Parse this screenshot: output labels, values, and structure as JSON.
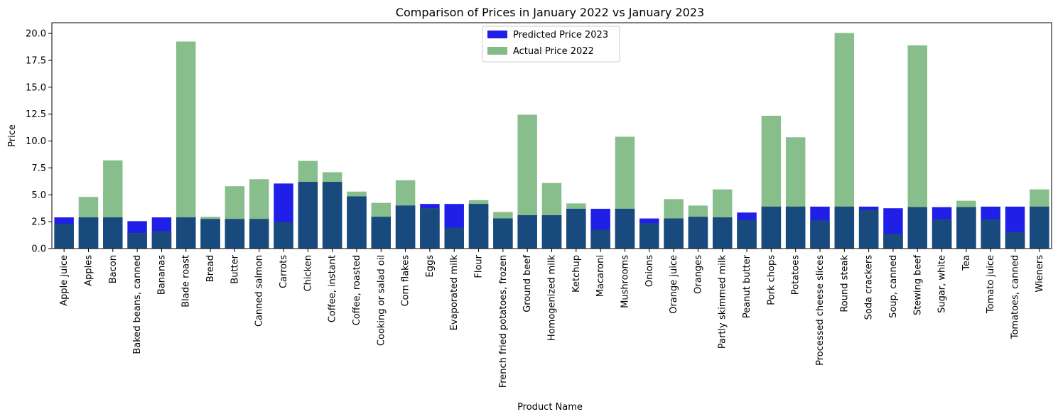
{
  "chart_data": {
    "type": "bar",
    "title": "Comparison of Prices in January 2022 vs January 2023",
    "xlabel": "Product Name",
    "ylabel": "Price",
    "ylim": [
      0,
      21.0
    ],
    "yticks": [
      "0.0",
      "2.5",
      "5.0",
      "7.5",
      "10.0",
      "12.5",
      "15.0",
      "17.5",
      "20.0"
    ],
    "ytick_values": [
      0,
      2.5,
      5,
      7.5,
      10,
      12.5,
      15,
      17.5,
      20
    ],
    "legend_position": "top-center",
    "grid": false,
    "categories": [
      "Apple juice",
      "Apples",
      "Bacon",
      "Baked beans, canned",
      "Bananas",
      "Blade roast",
      "Bread",
      "Butter",
      "Canned salmon",
      "Carrots",
      "Chicken",
      "Coffee, instant",
      "Coffee, roasted",
      "Cooking or salad oil",
      "Corn flakes",
      "Eggs",
      "Evaporated milk",
      "Flour",
      "French fried potatoes, frozen",
      "Ground beef",
      "Homogenized milk",
      "Ketchup",
      "Macaroni",
      "Mushrooms",
      "Onions",
      "Orange juice",
      "Oranges",
      "Partly skimmed milk",
      "Peanut butter",
      "Pork chops",
      "Potatoes",
      "Processed cheese slices",
      "Round steak",
      "Soda crackers",
      "Soup, canned",
      "Stewing beef",
      "Sugar, white",
      "Tea",
      "Tomato juice",
      "Tomatoes, canned",
      "Wieners"
    ],
    "series": [
      {
        "name": "Predicted Price 2023",
        "color": "#1f1fe8",
        "values": [
          2.9,
          2.9,
          2.9,
          2.55,
          2.9,
          2.9,
          2.75,
          2.75,
          2.75,
          6.05,
          6.2,
          6.2,
          4.85,
          2.95,
          4.0,
          4.15,
          4.15,
          4.15,
          2.8,
          3.1,
          3.1,
          3.7,
          3.7,
          3.7,
          2.8,
          2.8,
          2.95,
          2.9,
          3.35,
          3.9,
          3.9,
          3.9,
          3.9,
          3.9,
          3.75,
          3.85,
          3.85,
          3.85,
          3.9,
          3.9,
          3.9
        ]
      },
      {
        "name": "Actual Price 2022",
        "color": "#5aa55e",
        "values": [
          2.3,
          4.8,
          8.2,
          1.45,
          1.6,
          19.25,
          2.95,
          5.8,
          6.45,
          2.45,
          8.15,
          7.1,
          5.3,
          4.25,
          6.35,
          3.75,
          1.95,
          4.5,
          3.4,
          12.45,
          6.1,
          4.2,
          1.75,
          10.4,
          2.35,
          4.6,
          4.0,
          5.5,
          2.65,
          12.35,
          10.35,
          2.6,
          20.05,
          3.6,
          1.35,
          18.9,
          2.7,
          4.45,
          2.7,
          1.55,
          5.5
        ]
      }
    ],
    "overlap_color": "#194a7e"
  }
}
